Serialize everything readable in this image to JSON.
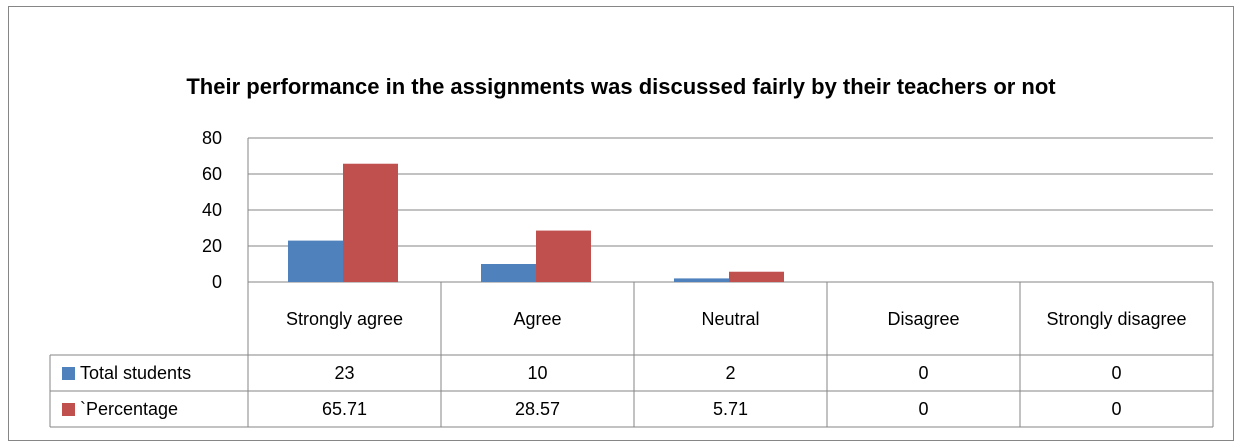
{
  "chart_data": {
    "type": "bar",
    "title": "Their performance in the assignments was discussed fairly by their teachers or not",
    "categories": [
      "Strongly agree",
      "Agree",
      "Neutral",
      "Disagree",
      "Strongly disagree"
    ],
    "series": [
      {
        "name": "Total students",
        "color": "#4f81bd",
        "values": [
          23,
          10,
          2,
          0,
          0
        ]
      },
      {
        "name": "`Percentage",
        "color": "#c0504d",
        "values": [
          65.71,
          28.57,
          5.71,
          0,
          0
        ]
      }
    ],
    "ylim": [
      0,
      80
    ],
    "yticks": [
      0,
      20,
      40,
      60,
      80
    ],
    "grid": true,
    "data_table": true
  }
}
